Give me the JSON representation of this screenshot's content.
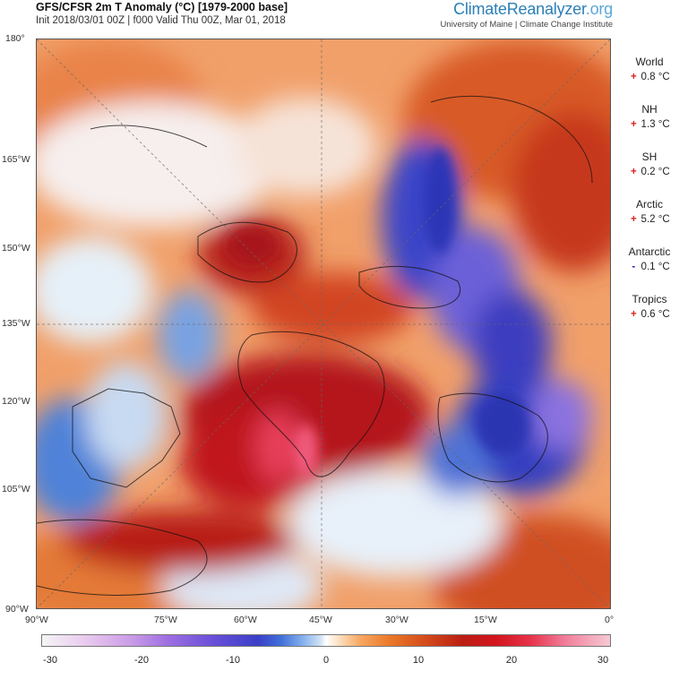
{
  "header": {
    "title": "GFS/CFSR 2m T Anomaly (°C) [1979-2000 base]",
    "subtitle": "Init 2018/03/01 00Z | f000 Valid Thu 00Z, Mar 01, 2018"
  },
  "brand": {
    "name_main": "ClimateReanalyzer",
    "name_tld": ".org",
    "sub": "University of Maine | Climate Change Institute",
    "color": "#2a7fb8"
  },
  "map": {
    "lat_labels": [
      "180°",
      "165°W",
      "150°W",
      "135°W",
      "120°W",
      "105°W",
      "90°W"
    ],
    "lon_labels": [
      "90°W",
      "75°W",
      "60°W",
      "45°W",
      "30°W",
      "15°W",
      "0°"
    ]
  },
  "stats": [
    {
      "name": "World",
      "sign": "+",
      "value": "0.8 °C"
    },
    {
      "name": "NH",
      "sign": "+",
      "value": "1.3 °C"
    },
    {
      "name": "SH",
      "sign": "+",
      "value": "0.2 °C"
    },
    {
      "name": "Arctic",
      "sign": "+",
      "value": "5.2 °C"
    },
    {
      "name": "Antarctic",
      "sign": "-",
      "value": "0.1 °C"
    },
    {
      "name": "Tropics",
      "sign": "+",
      "value": "0.6 °C"
    }
  ],
  "colorbar": {
    "ticks": [
      "-30",
      "-20",
      "-10",
      "0",
      "10",
      "20",
      "30"
    ],
    "min": -30,
    "max": 30,
    "colors": {
      "cold": "#3a3fc8",
      "neutral": "#ffffff",
      "warm": "#bb1e12"
    }
  }
}
